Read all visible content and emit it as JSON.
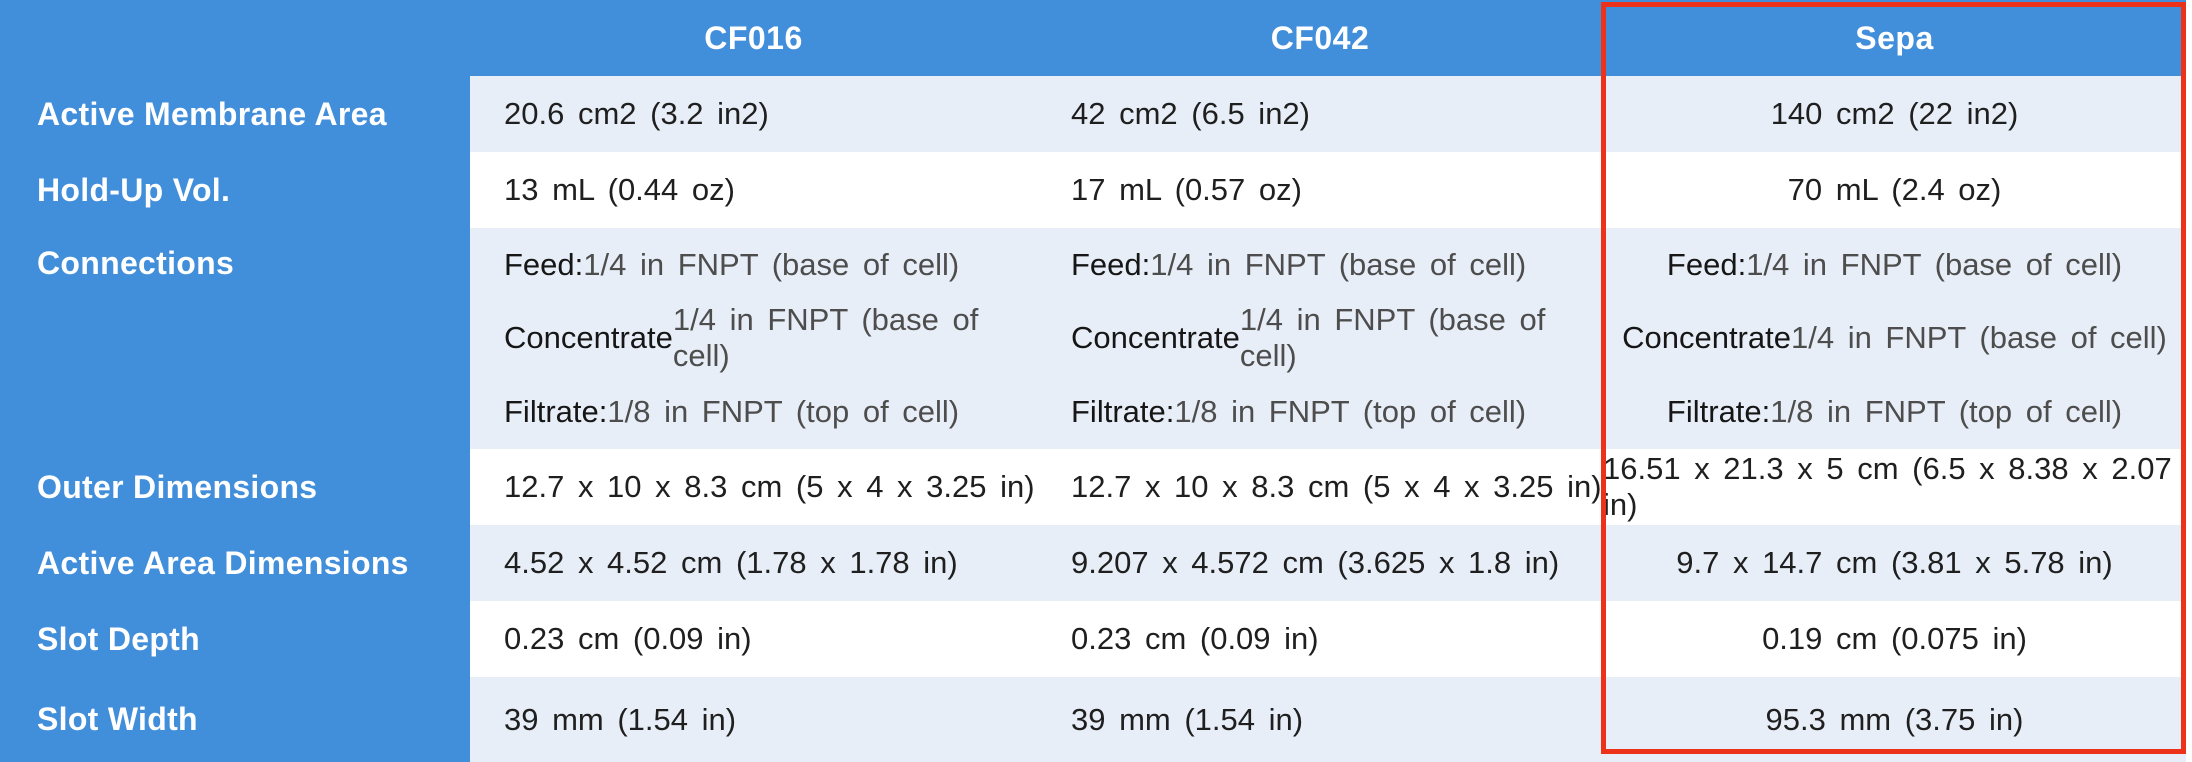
{
  "header": {
    "columns": [
      "CF016",
      "CF042",
      "Sepa"
    ]
  },
  "rows": [
    {
      "label": "Active Membrane Area",
      "values": [
        "20.6 cm2 (3.2 in2)",
        "42 cm2 (6.5 in2)",
        "140 cm2 (22 in2)"
      ]
    },
    {
      "label": "Hold-Up Vol.",
      "values": [
        "13 mL (0.44 oz)",
        "17 mL (0.57 oz)",
        "70 mL (2.4 oz)"
      ]
    },
    {
      "label": "Connections",
      "lines": [
        {
          "prefix": "Feed:",
          "rest": "1/4 in FNPT (base of cell)"
        },
        {
          "prefix": "Concentrate",
          "rest": "1/4 in FNPT (base of cell)"
        },
        {
          "prefix": "Filtrate:",
          "rest": "1/8 in FNPT (top of cell)"
        }
      ]
    },
    {
      "label": "Outer Dimensions",
      "values": [
        "12.7 x 10 x 8.3 cm (5 x 4 x 3.25 in)",
        "12.7 x 10 x 8.3 cm (5 x 4 x 3.25 in)",
        "16.51 x 21.3 x 5 cm (6.5 x 8.38 x 2.07 in)"
      ]
    },
    {
      "label": "Active Area Dimensions",
      "values": [
        "4.52 x 4.52 cm (1.78 x 1.78 in)",
        "9.207 x 4.572 cm (3.625 x 1.8 in)",
        "9.7 x 14.7 cm (3.81 x 5.78 in)"
      ]
    },
    {
      "label": "Slot Depth",
      "values": [
        "0.23 cm (0.09 in)",
        "0.23 cm (0.09 in)",
        "0.19 cm (0.075 in)"
      ]
    },
    {
      "label": "Slot Width",
      "values": [
        "39 mm (1.54 in)",
        "39 mm (1.54 in)",
        "95.3 mm (3.75 in)"
      ]
    }
  ],
  "highlight": {
    "column": "Sepa"
  },
  "colors": {
    "header_blue": "#418EDB",
    "row_alt_blue": "#E8EEF7",
    "row_white": "#FFFFFF",
    "highlight_red": "#EC3319",
    "label_text": "#FFFFFF",
    "value_text": "#1F1F1F",
    "secondary_text": "#4D4D4D"
  }
}
